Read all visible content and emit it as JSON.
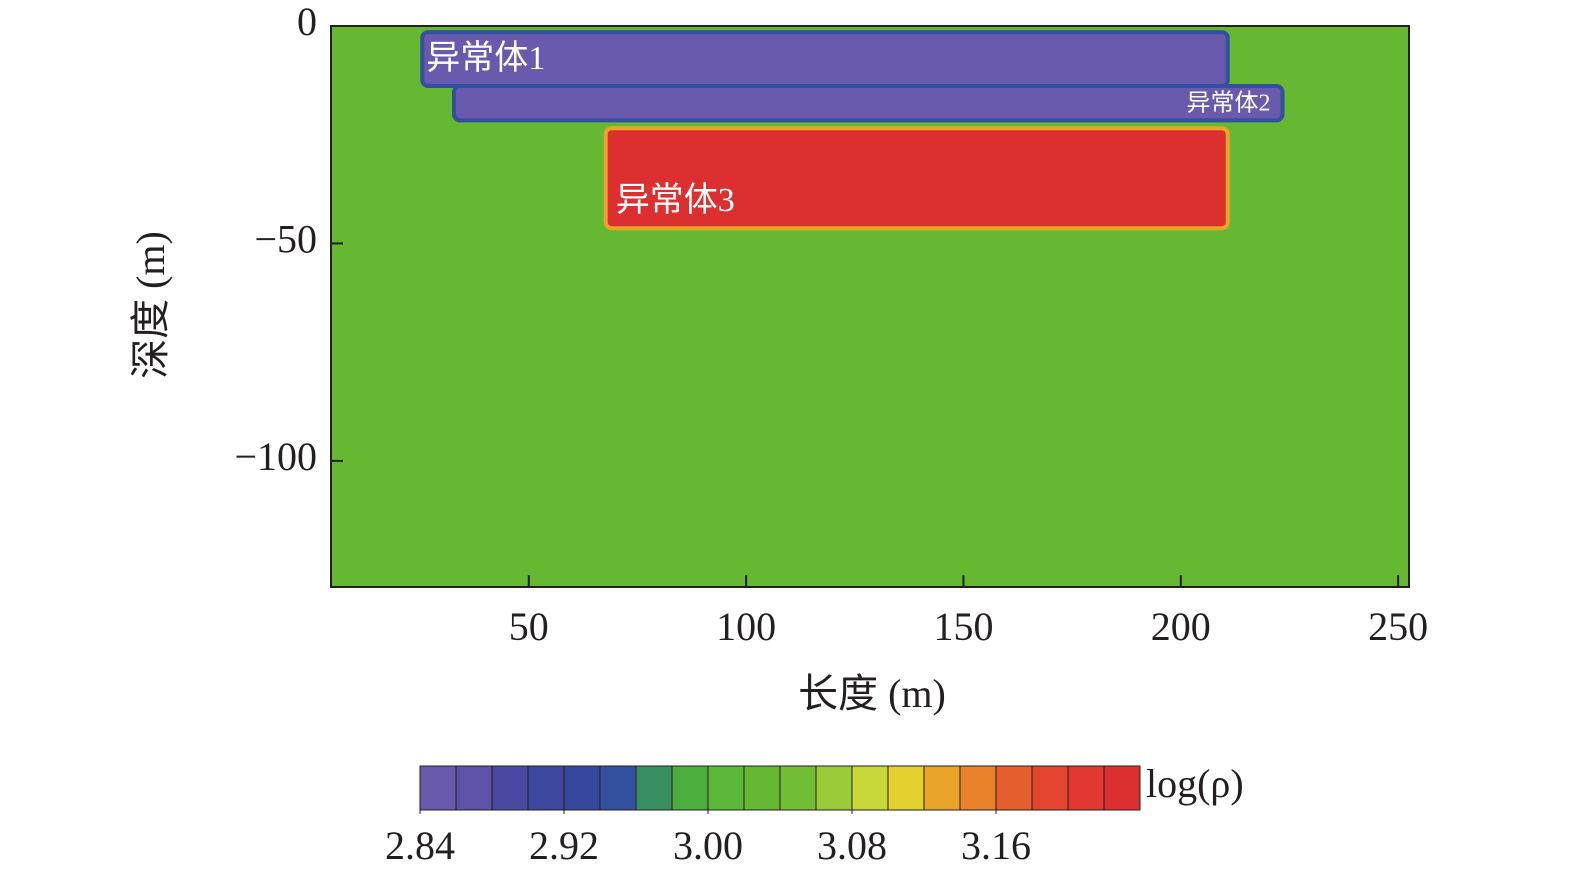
{
  "chart_data": {
    "type": "section",
    "x_label": "长度 (m)",
    "y_label": "深度 (m)",
    "xlim": [
      4.5,
      252.5
    ],
    "ylim": [
      -129,
      0
    ],
    "xticks": [
      50,
      100,
      150,
      200,
      250
    ],
    "yticks": [
      0,
      {
        "value": -50,
        "label": "−50"
      },
      {
        "value": -100,
        "label": "−100"
      }
    ],
    "background": 3.03,
    "bodies": [
      {
        "name": "异常体1",
        "x": [
          25.5,
          210.8
        ],
        "y": [
          -13.8,
          -1.4
        ],
        "value": 2.85
      },
      {
        "name": "异常体2",
        "x": [
          32.8,
          223.4
        ],
        "y": [
          -21.7,
          -13.8
        ],
        "value": 2.85
      },
      {
        "name": "异常体3",
        "x": [
          67.7,
          210.8
        ],
        "y": [
          -46.5,
          -23.5
        ],
        "value": 3.23
      }
    ],
    "colorbar": {
      "label": "log(ρ)",
      "lim": [
        2.84,
        3.24
      ],
      "ticks": [
        2.84,
        2.92,
        {
          "value": 3,
          "label": "3.00"
        },
        3.08,
        3.16
      ],
      "colors": [
        "#6a5aad",
        "#5d52a8",
        "#4a48a0",
        "#3d479e",
        "#36479d",
        "#33509f",
        "#3a8f62",
        "#4cae3c",
        "#5db83a",
        "#66b833",
        "#72bd36",
        "#9ccb3a",
        "#c8d83a",
        "#e2d12f",
        "#e8a52a",
        "#e9832b",
        "#e55f2e",
        "#e4452f",
        "#e13832",
        "#dc2f2f"
      ]
    }
  }
}
